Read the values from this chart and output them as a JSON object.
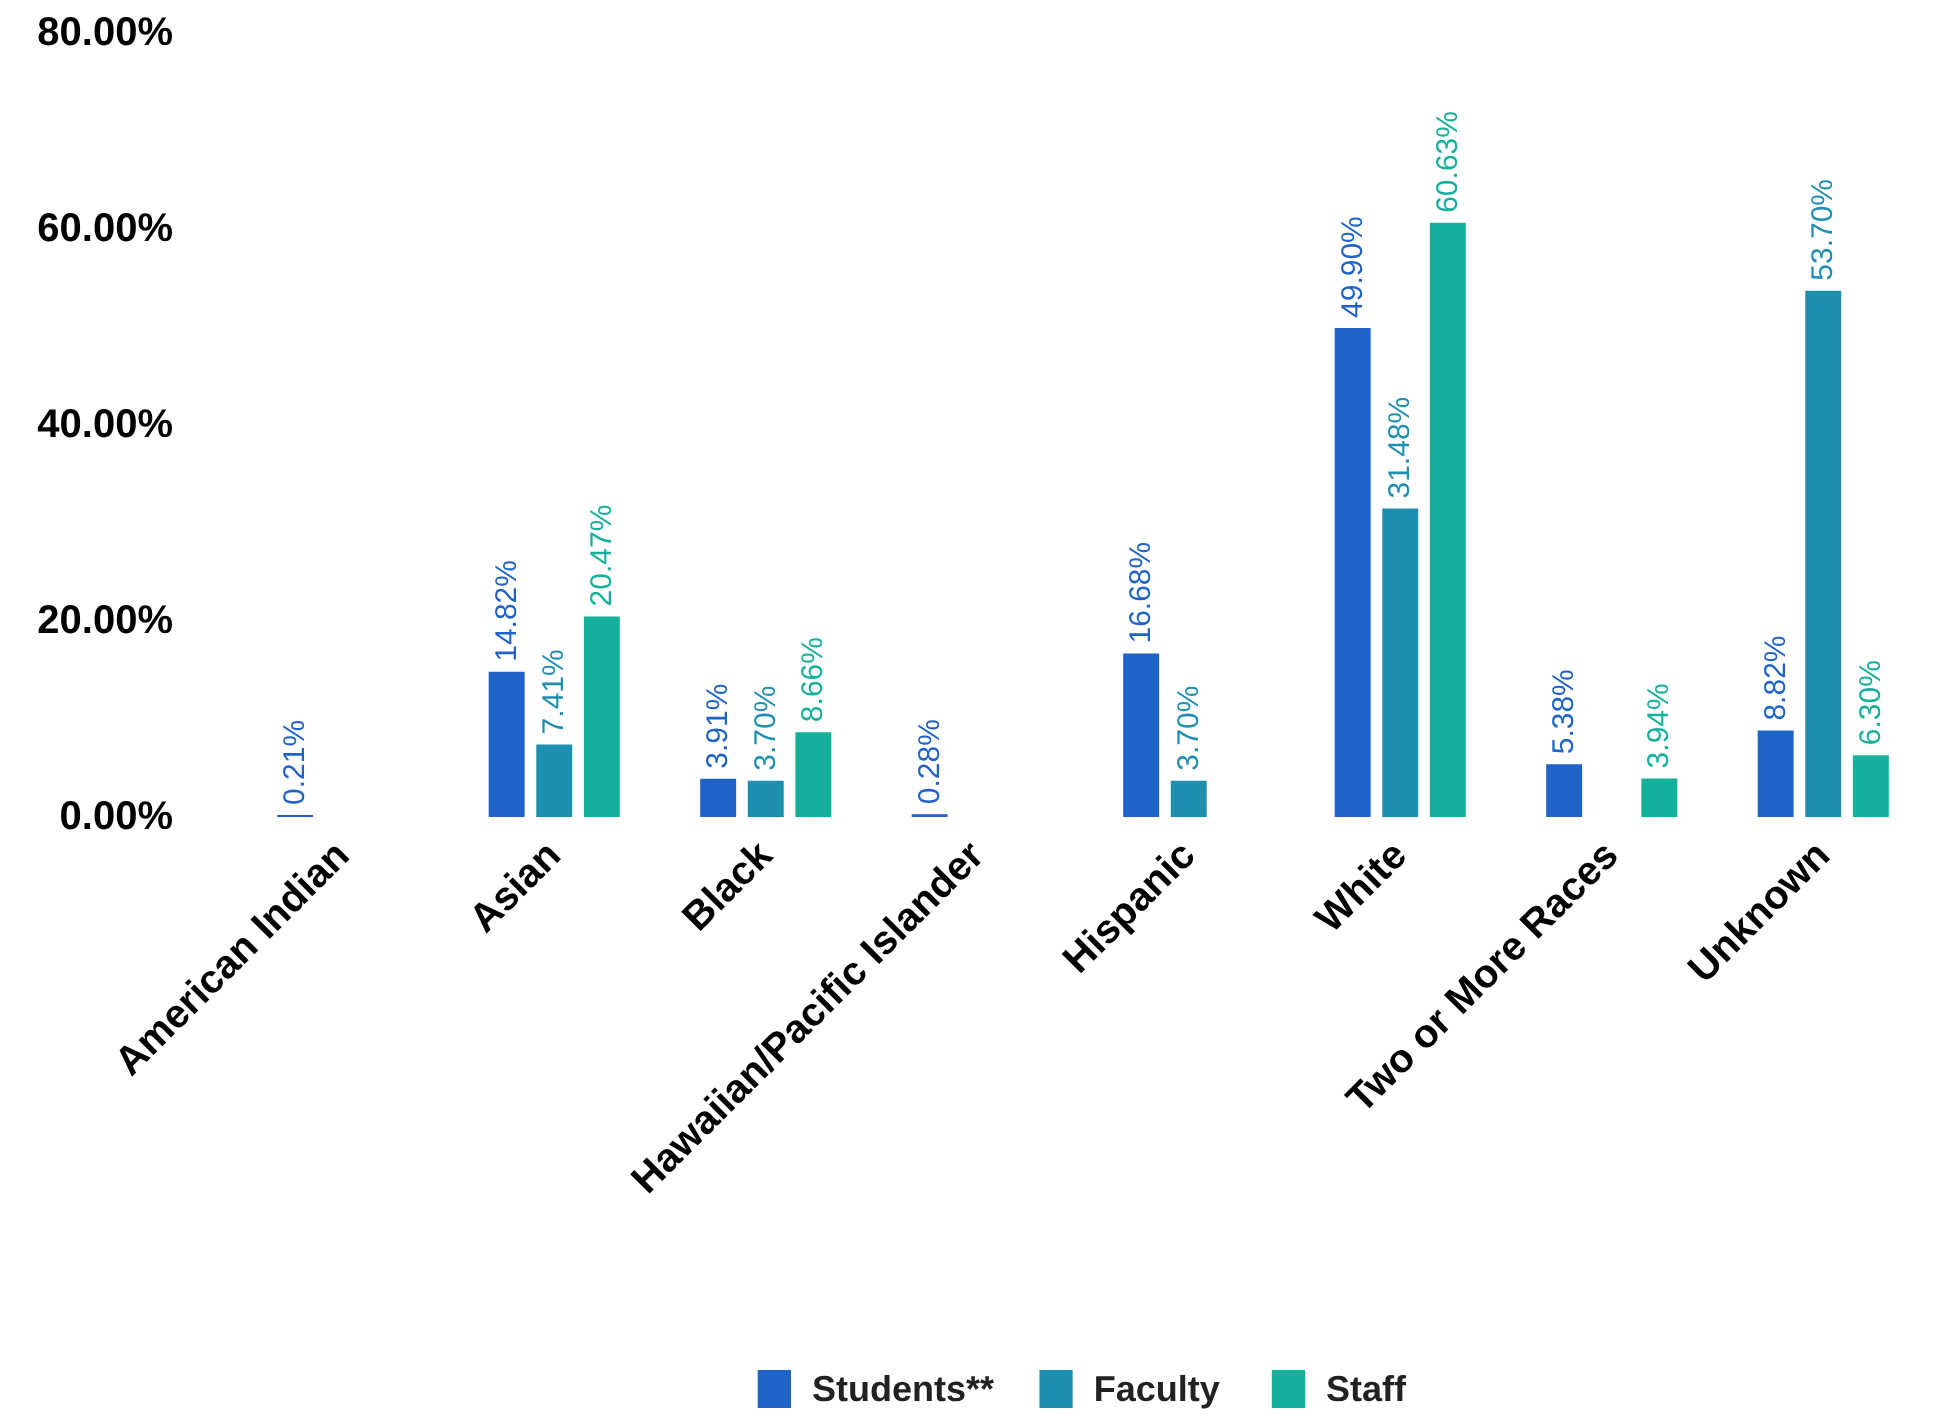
{
  "chart_data": {
    "type": "bar",
    "categories": [
      "American Indian",
      "Asian",
      "Black",
      "Hawaiian/Pacific Islander",
      "Hispanic",
      "White",
      "Two or More Races",
      "Unknown"
    ],
    "series": [
      {
        "name": "Students**",
        "color": "#1f63c9",
        "values": [
          0.21,
          14.82,
          3.91,
          0.28,
          16.68,
          49.9,
          5.38,
          8.82
        ],
        "value_labels": [
          "0.21%",
          "14.82%",
          "3.91%",
          "0.28%",
          "16.68%",
          "49.90%",
          "5.38%",
          "8.82%"
        ]
      },
      {
        "name": "Faculty",
        "color": "#1e8fb0",
        "values": [
          null,
          7.41,
          3.7,
          null,
          3.7,
          31.48,
          null,
          53.7
        ],
        "value_labels": [
          null,
          "7.41%",
          "3.70%",
          null,
          "3.70%",
          "31.48%",
          null,
          "53.70%"
        ]
      },
      {
        "name": "Staff",
        "color": "#14b09c",
        "values": [
          null,
          20.47,
          8.66,
          null,
          null,
          60.63,
          3.94,
          6.3
        ],
        "value_labels": [
          null,
          "20.47%",
          "8.66%",
          null,
          null,
          "60.63%",
          "3.94%",
          "6.30%"
        ]
      }
    ],
    "ylim": [
      0,
      80
    ],
    "yticks": [
      {
        "value": 0,
        "label": "0.00%"
      },
      {
        "value": 20,
        "label": "20.00%"
      },
      {
        "value": 40,
        "label": "40.00%"
      },
      {
        "value": 60,
        "label": "60.00%"
      },
      {
        "value": 80,
        "label": "80.00%"
      }
    ],
    "legend": "bottom"
  }
}
